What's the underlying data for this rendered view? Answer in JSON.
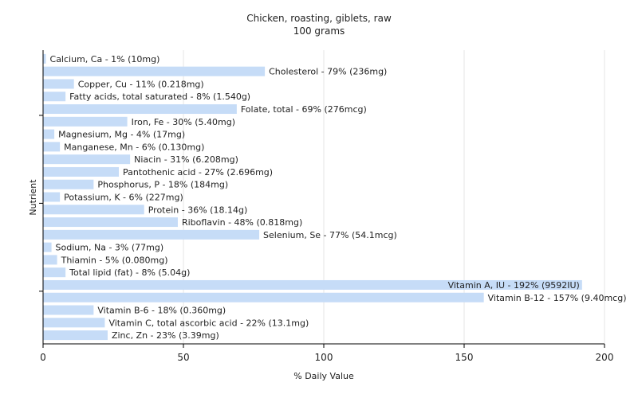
{
  "chart_data": {
    "type": "bar",
    "orientation": "horizontal",
    "title": "Chicken, roasting, giblets, raw",
    "subtitle": "100 grams",
    "xlabel": "% Daily Value",
    "ylabel": "Nutrient",
    "xlim": [
      0,
      200
    ],
    "xticks": [
      0,
      50,
      100,
      150,
      200
    ],
    "xtick_labels": [
      "0",
      "50",
      "100",
      "150",
      "200"
    ],
    "grid": "vertical",
    "bar_color": "#c6dcf7",
    "categories": [
      "Calcium, Ca",
      "Cholesterol",
      "Copper, Cu",
      "Fatty acids, total saturated",
      "Folate, total",
      "Iron, Fe",
      "Magnesium, Mg",
      "Manganese, Mn",
      "Niacin",
      "Pantothenic acid",
      "Phosphorus, P",
      "Potassium, K",
      "Protein",
      "Riboflavin",
      "Selenium, Se",
      "Sodium, Na",
      "Thiamin",
      "Total lipid (fat)",
      "Vitamin A, IU",
      "Vitamin B-12",
      "Vitamin B-6",
      "Vitamin C, total ascorbic acid",
      "Zinc, Zn"
    ],
    "values": [
      1,
      79,
      11,
      8,
      69,
      30,
      4,
      6,
      31,
      27,
      18,
      6,
      36,
      48,
      77,
      3,
      5,
      8,
      192,
      157,
      18,
      22,
      23
    ],
    "labels": [
      "Calcium, Ca - 1% (10mg)",
      "Cholesterol - 79% (236mg)",
      "Copper, Cu - 11% (0.218mg)",
      "Fatty acids, total saturated - 8% (1.540g)",
      "Folate, total - 69% (276mcg)",
      "Iron, Fe - 30% (5.40mg)",
      "Magnesium, Mg - 4% (17mg)",
      "Manganese, Mn - 6% (0.130mg)",
      "Niacin - 31% (6.208mg)",
      "Pantothenic acid - 27% (2.696mg)",
      "Phosphorus, P - 18% (184mg)",
      "Potassium, K - 6% (227mg)",
      "Protein - 36% (18.14g)",
      "Riboflavin - 48% (0.818mg)",
      "Selenium, Se - 77% (54.1mcg)",
      "Sodium, Na - 3% (77mg)",
      "Thiamin - 5% (0.080mg)",
      "Total lipid (fat) - 8% (5.04g)",
      "Vitamin A, IU - 192% (9592IU)",
      "Vitamin B-12 - 157% (9.40mcg)",
      "Vitamin B-6 - 18% (0.360mg)",
      "Vitamin C, total ascorbic acid - 22% (13.1mg)",
      "Zinc, Zn - 23% (3.39mg)"
    ]
  }
}
